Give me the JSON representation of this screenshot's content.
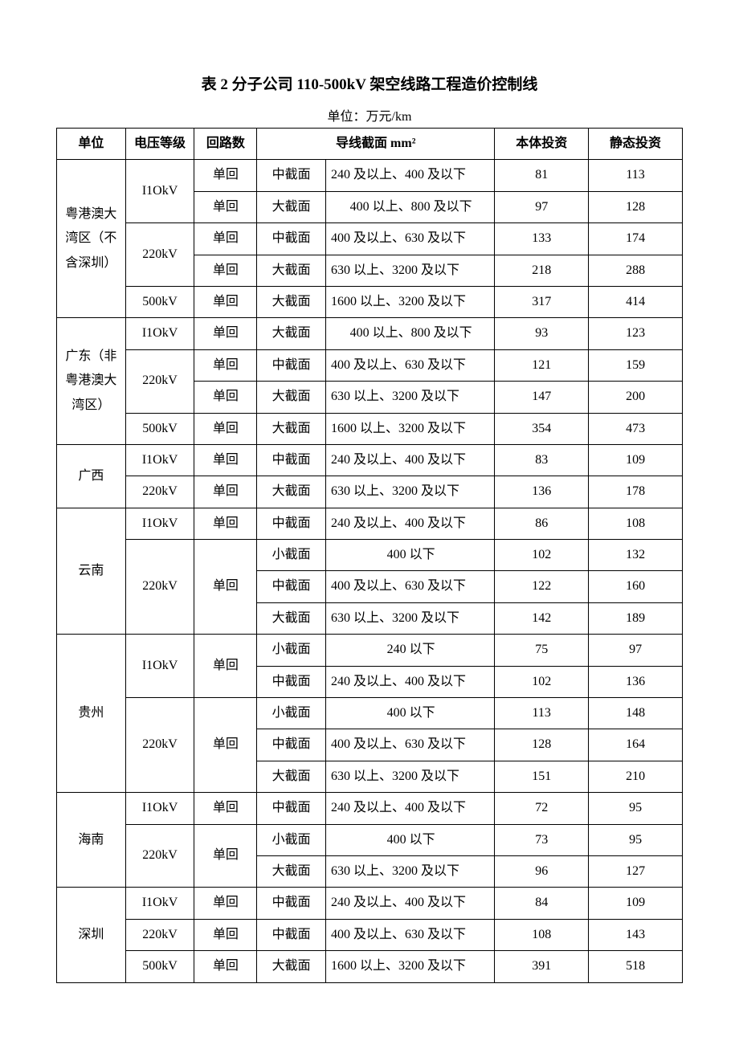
{
  "title": "表 2 分子公司 110-500kV 架空线路工程造价控制线",
  "unit_line": "单位：万元/km",
  "headers": {
    "unit": "单位",
    "voltage": "电压等级",
    "circuit": "回路数",
    "cross_section": "导线截面 mm²",
    "invest1": "本体投资",
    "invest2": "静态投资"
  },
  "regions": [
    {
      "name": "粤港澳大湾区（不含深圳）",
      "rows": [
        {
          "voltage": "I1OkV",
          "vspan": 2,
          "circuit": "单回",
          "cspan": 1,
          "cs_type": "中截面",
          "cs_desc": "240 及以上、400 及以下",
          "desc_align": "left",
          "i1": "81",
          "i2": "113"
        },
        {
          "voltage": "",
          "vspan": 0,
          "circuit": "单回",
          "cspan": 1,
          "cs_type": "大截面",
          "cs_desc": "400 以上、800 及以下",
          "desc_align": "center",
          "i1": "97",
          "i2": "128"
        },
        {
          "voltage": "220kV",
          "vspan": 2,
          "circuit": "单回",
          "cspan": 1,
          "cs_type": "中截面",
          "cs_desc": "400 及以上、630 及以下",
          "desc_align": "left",
          "i1": "133",
          "i2": "174"
        },
        {
          "voltage": "",
          "vspan": 0,
          "circuit": "单回",
          "cspan": 1,
          "cs_type": "大截面",
          "cs_desc": "630 以上、3200 及以下",
          "desc_align": "left",
          "i1": "218",
          "i2": "288"
        },
        {
          "voltage": "500kV",
          "vspan": 1,
          "circuit": "单回",
          "cspan": 1,
          "cs_type": "大截面",
          "cs_desc": "1600 以上、3200 及以下",
          "desc_align": "left",
          "i1": "317",
          "i2": "414"
        }
      ]
    },
    {
      "name": "广东（非粤港澳大湾区）",
      "rows": [
        {
          "voltage": "I1OkV",
          "vspan": 1,
          "circuit": "单回",
          "cspan": 1,
          "cs_type": "大截面",
          "cs_desc": "400 以上、800 及以下",
          "desc_align": "center",
          "i1": "93",
          "i2": "123"
        },
        {
          "voltage": "220kV",
          "vspan": 2,
          "circuit": "单回",
          "cspan": 1,
          "cs_type": "中截面",
          "cs_desc": "400 及以上、630 及以下",
          "desc_align": "left",
          "i1": "121",
          "i2": "159"
        },
        {
          "voltage": "",
          "vspan": 0,
          "circuit": "单回",
          "cspan": 1,
          "cs_type": "大截面",
          "cs_desc": "630 以上、3200 及以下",
          "desc_align": "left",
          "i1": "147",
          "i2": "200"
        },
        {
          "voltage": "500kV",
          "vspan": 1,
          "circuit": "单回",
          "cspan": 1,
          "cs_type": "大截面",
          "cs_desc": "1600 以上、3200 及以下",
          "desc_align": "left",
          "i1": "354",
          "i2": "473"
        }
      ]
    },
    {
      "name": "广西",
      "rows": [
        {
          "voltage": "I1OkV",
          "vspan": 1,
          "circuit": "单回",
          "cspan": 1,
          "cs_type": "中截面",
          "cs_desc": "240 及以上、400 及以下",
          "desc_align": "left",
          "i1": "83",
          "i2": "109"
        },
        {
          "voltage": "220kV",
          "vspan": 1,
          "circuit": "单回",
          "cspan": 1,
          "cs_type": "大截面",
          "cs_desc": "630 以上、3200 及以下",
          "desc_align": "left",
          "i1": "136",
          "i2": "178"
        }
      ]
    },
    {
      "name": "云南",
      "rows": [
        {
          "voltage": "I1OkV",
          "vspan": 1,
          "circuit": "单回",
          "cspan": 1,
          "cs_type": "中截面",
          "cs_desc": "240 及以上、400 及以下",
          "desc_align": "left",
          "i1": "86",
          "i2": "108"
        },
        {
          "voltage": "220kV",
          "vspan": 3,
          "circuit": "单回",
          "cspan": 3,
          "cs_type": "小截面",
          "cs_desc": "400 以下",
          "desc_align": "center",
          "i1": "102",
          "i2": "132"
        },
        {
          "voltage": "",
          "vspan": 0,
          "circuit": "",
          "cspan": 0,
          "cs_type": "中截面",
          "cs_desc": "400 及以上、630 及以下",
          "desc_align": "left",
          "i1": "122",
          "i2": "160"
        },
        {
          "voltage": "",
          "vspan": 0,
          "circuit": "",
          "cspan": 0,
          "cs_type": "大截面",
          "cs_desc": "630 以上、3200 及以下",
          "desc_align": "left",
          "i1": "142",
          "i2": "189"
        }
      ]
    },
    {
      "name": "贵州",
      "rows": [
        {
          "voltage": "I1OkV",
          "vspan": 2,
          "circuit": "单回",
          "cspan": 2,
          "cs_type": "小截面",
          "cs_desc": "240 以下",
          "desc_align": "center",
          "i1": "75",
          "i2": "97"
        },
        {
          "voltage": "",
          "vspan": 0,
          "circuit": "",
          "cspan": 0,
          "cs_type": "中截面",
          "cs_desc": "240 及以上、400 及以下",
          "desc_align": "left",
          "i1": "102",
          "i2": "136"
        },
        {
          "voltage": "220kV",
          "vspan": 3,
          "circuit": "单回",
          "cspan": 3,
          "cs_type": "小截面",
          "cs_desc": "400 以下",
          "desc_align": "center",
          "i1": "113",
          "i2": "148"
        },
        {
          "voltage": "",
          "vspan": 0,
          "circuit": "",
          "cspan": 0,
          "cs_type": "中截面",
          "cs_desc": "400 及以上、630 及以下",
          "desc_align": "left",
          "i1": "128",
          "i2": "164"
        },
        {
          "voltage": "",
          "vspan": 0,
          "circuit": "",
          "cspan": 0,
          "cs_type": "大截面",
          "cs_desc": "630 以上、3200 及以下",
          "desc_align": "left",
          "i1": "151",
          "i2": "210"
        }
      ]
    },
    {
      "name": "海南",
      "rows": [
        {
          "voltage": "I1OkV",
          "vspan": 1,
          "circuit": "单回",
          "cspan": 1,
          "cs_type": "中截面",
          "cs_desc": "240 及以上、400 及以下",
          "desc_align": "left",
          "i1": "72",
          "i2": "95"
        },
        {
          "voltage": "220kV",
          "vspan": 2,
          "circuit": "单回",
          "cspan": 2,
          "cs_type": "小截面",
          "cs_desc": "400 以下",
          "desc_align": "center",
          "i1": "73",
          "i2": "95"
        },
        {
          "voltage": "",
          "vspan": 0,
          "circuit": "",
          "cspan": 0,
          "cs_type": "大截面",
          "cs_desc": "630 以上、3200 及以下",
          "desc_align": "left",
          "i1": "96",
          "i2": "127"
        }
      ]
    },
    {
      "name": "深圳",
      "rows": [
        {
          "voltage": "I1OkV",
          "vspan": 1,
          "circuit": "单回",
          "cspan": 1,
          "cs_type": "中截面",
          "cs_desc": "240 及以上、400 及以下",
          "desc_align": "left",
          "i1": "84",
          "i2": "109"
        },
        {
          "voltage": "220kV",
          "vspan": 1,
          "circuit": "单回",
          "cspan": 1,
          "cs_type": "中截面",
          "cs_desc": "400 及以上、630 及以下",
          "desc_align": "left",
          "i1": "108",
          "i2": "143"
        },
        {
          "voltage": "500kV",
          "vspan": 1,
          "circuit": "单回",
          "cspan": 1,
          "cs_type": "大截面",
          "cs_desc": "1600 以上、3200 及以下",
          "desc_align": "left",
          "i1": "391",
          "i2": "518"
        }
      ]
    }
  ]
}
